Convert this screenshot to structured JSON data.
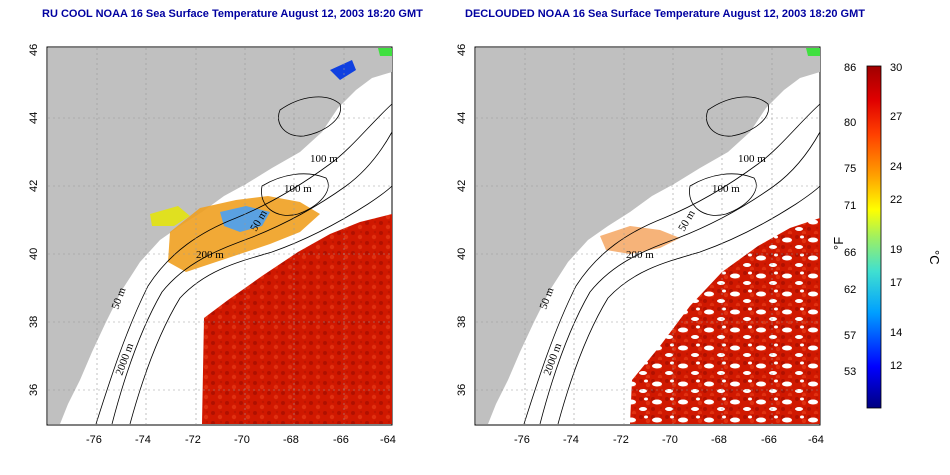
{
  "panels": [
    {
      "title": "RU COOL NOAA 16 Sea Surface Temperature August 12, 2003 18:20 GMT",
      "cloud_masked": false
    },
    {
      "title": "DECLOUDED NOAA 16 Sea Surface Temperature August 12, 2003 18:20 GMT",
      "cloud_masked": true
    }
  ],
  "axes": {
    "x_ticks": [
      "-76",
      "-74",
      "-72",
      "-70",
      "-68",
      "-66",
      "-64"
    ],
    "y_ticks": [
      "36",
      "38",
      "40",
      "42",
      "44",
      "46"
    ]
  },
  "contour_labels": [
    "100 m",
    "100 m",
    "50 m",
    "200 m",
    "50 m",
    "2000 m"
  ],
  "colorbar": {
    "fahrenheit_label": "°F",
    "celsius_label": "°C",
    "fahrenheit_ticks": [
      "86",
      "80",
      "75",
      "71",
      "66",
      "62",
      "57",
      "53"
    ],
    "celsius_ticks": [
      "30",
      "27",
      "24",
      "22",
      "19",
      "17",
      "14",
      "12"
    ],
    "range_c": [
      9,
      30
    ]
  },
  "colors": {
    "land": "#c0c0c0",
    "title": "#0000a0",
    "warm_water": "#cc1100"
  }
}
